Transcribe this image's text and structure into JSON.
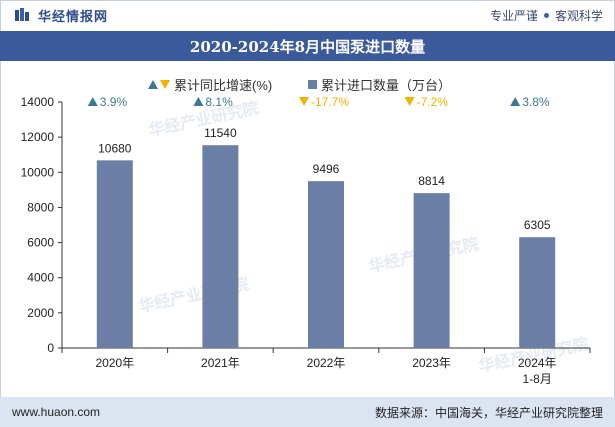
{
  "header": {
    "brand_name": "华经情报网",
    "slogan_left": "专业严谨",
    "slogan_right": "客观科学"
  },
  "chart_data": {
    "type": "bar",
    "title": "2020-2024年8月中国泵进口数量",
    "categories": [
      "2020年",
      "2021年",
      "2022年",
      "2023年",
      "2024年\n1-8月"
    ],
    "series": [
      {
        "name": "累计进口数量（万台）",
        "values": [
          10680,
          11540,
          9496,
          8814,
          6305
        ],
        "data_labels": [
          "10680",
          "11540",
          "9496",
          "8814",
          "6305"
        ]
      },
      {
        "name": "累计同比增速(%)",
        "values": [
          3.9,
          8.1,
          -17.7,
          -7.2,
          3.8
        ],
        "data_labels": [
          "3.9%",
          "8.1%",
          "-17.7%",
          "-7.2%",
          "3.8%"
        ]
      }
    ],
    "ylim": [
      0,
      14000
    ],
    "yticks": [
      0,
      2000,
      4000,
      6000,
      8000,
      10000,
      12000,
      14000
    ],
    "grid": false,
    "legend_position": "top",
    "colors": {
      "bar": "#6b7ea6",
      "up": "#3c7a94",
      "down": "#f0b400"
    },
    "watermark": "华经产业研究院"
  },
  "footer": {
    "site": "www.huaon.com",
    "source": "数据来源：中国海关，华经产业研究院整理"
  }
}
